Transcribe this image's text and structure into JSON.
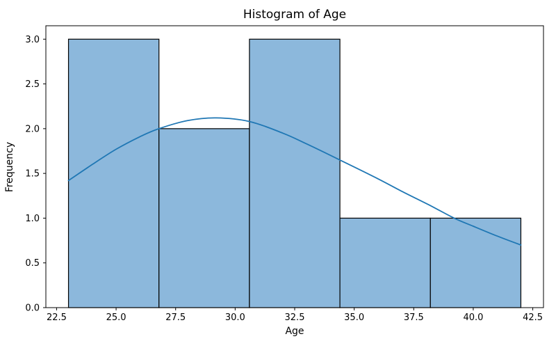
{
  "chart_data": {
    "type": "bar",
    "subtype": "histogram-with-kde",
    "title": "Histogram of Age",
    "xlabel": "Age",
    "ylabel": "Frequency",
    "bin_edges": [
      23.0,
      26.8,
      30.6,
      34.4,
      38.2,
      42.0
    ],
    "frequencies": [
      3,
      2,
      3,
      1,
      1
    ],
    "kde_overlay": {
      "x": [
        23.0,
        24.0,
        25.0,
        26.0,
        26.8,
        28.0,
        29.2,
        30.6,
        32.0,
        33.0,
        34.4,
        36.0,
        37.0,
        38.2,
        39.2,
        40.0,
        41.0,
        42.0
      ],
      "y": [
        1.42,
        1.6,
        1.77,
        1.91,
        2.0,
        2.09,
        2.12,
        2.08,
        1.95,
        1.83,
        1.65,
        1.44,
        1.3,
        1.14,
        1.0,
        0.91,
        0.8,
        0.7
      ]
    },
    "xlim": [
      22.05,
      42.95
    ],
    "ylim": [
      0,
      3.15
    ],
    "xticks": [
      22.5,
      25.0,
      27.5,
      30.0,
      32.5,
      35.0,
      37.5,
      40.0,
      42.5
    ],
    "yticks": [
      0.0,
      0.5,
      1.0,
      1.5,
      2.0,
      2.5,
      3.0
    ],
    "grid": false,
    "legend": false,
    "colors": {
      "bar_fill": "#8cb8dc",
      "bar_edge": "#000000",
      "kde_line": "#1f77b4",
      "axis": "#000000",
      "background": "#ffffff"
    }
  }
}
